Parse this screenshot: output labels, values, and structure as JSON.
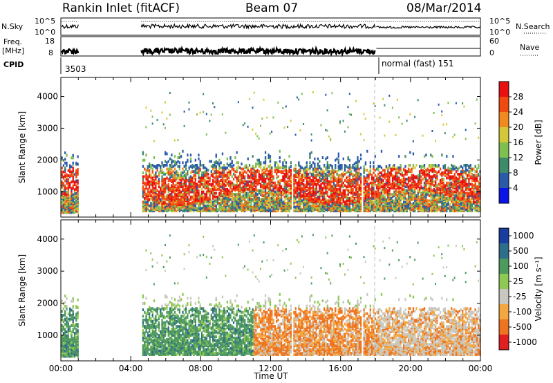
{
  "header": {
    "title": "Rankin Inlet (fitACF)",
    "beam": "Beam 07",
    "date": "08/Mar/2014"
  },
  "params": {
    "nsky_label": "N.Sky",
    "nsearch_label": "N.Search",
    "freq_label": "Freq.",
    "freq_unit": "[MHz]",
    "nave_label": "Nave",
    "cpid_label": "CPID",
    "noise_ticks": [
      "10^5",
      "10^0"
    ],
    "freq_ticks": [
      "18",
      "8"
    ],
    "nave_ticks": [
      "60",
      "0"
    ],
    "cpid_segments": [
      {
        "label": "3503",
        "from": "00:00",
        "to": "18:00"
      },
      {
        "label": "normal (fast) 151",
        "from": "18:00",
        "to": "24:00"
      }
    ]
  },
  "chart_data": [
    {
      "type": "heatmap",
      "name": "power",
      "ylabel": "Slant Range [km]",
      "xlabel": "",
      "xlim": [
        "00:00",
        "24:00"
      ],
      "ylim": [
        200,
        4600
      ],
      "y_ticks": [
        1000,
        2000,
        3000,
        4000
      ],
      "colorbar": {
        "label": "Power [dB]",
        "range": [
          0,
          32
        ],
        "ticks": [
          4,
          8,
          12,
          16,
          20,
          24,
          28
        ],
        "colors": [
          "#0a14e6",
          "#2a5aa8",
          "#3f8a6a",
          "#7fbf52",
          "#d4c83a",
          "#f08a20",
          "#f04a10",
          "#e81010"
        ]
      },
      "data_gaps_ut": [
        [
          1.0,
          4.6
        ]
      ],
      "scan_edges_ut": [
        18.0
      ]
    },
    {
      "type": "heatmap",
      "name": "velocity",
      "ylabel": "Slant Range [km]",
      "xlabel": "Time UT",
      "xlim": [
        "00:00",
        "24:00"
      ],
      "ylim": [
        200,
        4600
      ],
      "y_ticks": [
        1000,
        2000,
        3000,
        4000
      ],
      "x_ticks": [
        "00:00",
        "04:00",
        "08:00",
        "12:00",
        "16:00",
        "20:00",
        "00:00"
      ],
      "colorbar": {
        "label": "Velocity [m s⁻¹]",
        "tick_labels": [
          "1000",
          "500",
          "100",
          "25",
          "-25",
          "-100",
          "-500",
          "-1000"
        ],
        "colors": [
          "#1a3ea0",
          "#2f6e8a",
          "#4e9a5e",
          "#8fc853",
          "#c8c8c0",
          "#f4a640",
          "#ee7420",
          "#e02020"
        ]
      }
    }
  ]
}
